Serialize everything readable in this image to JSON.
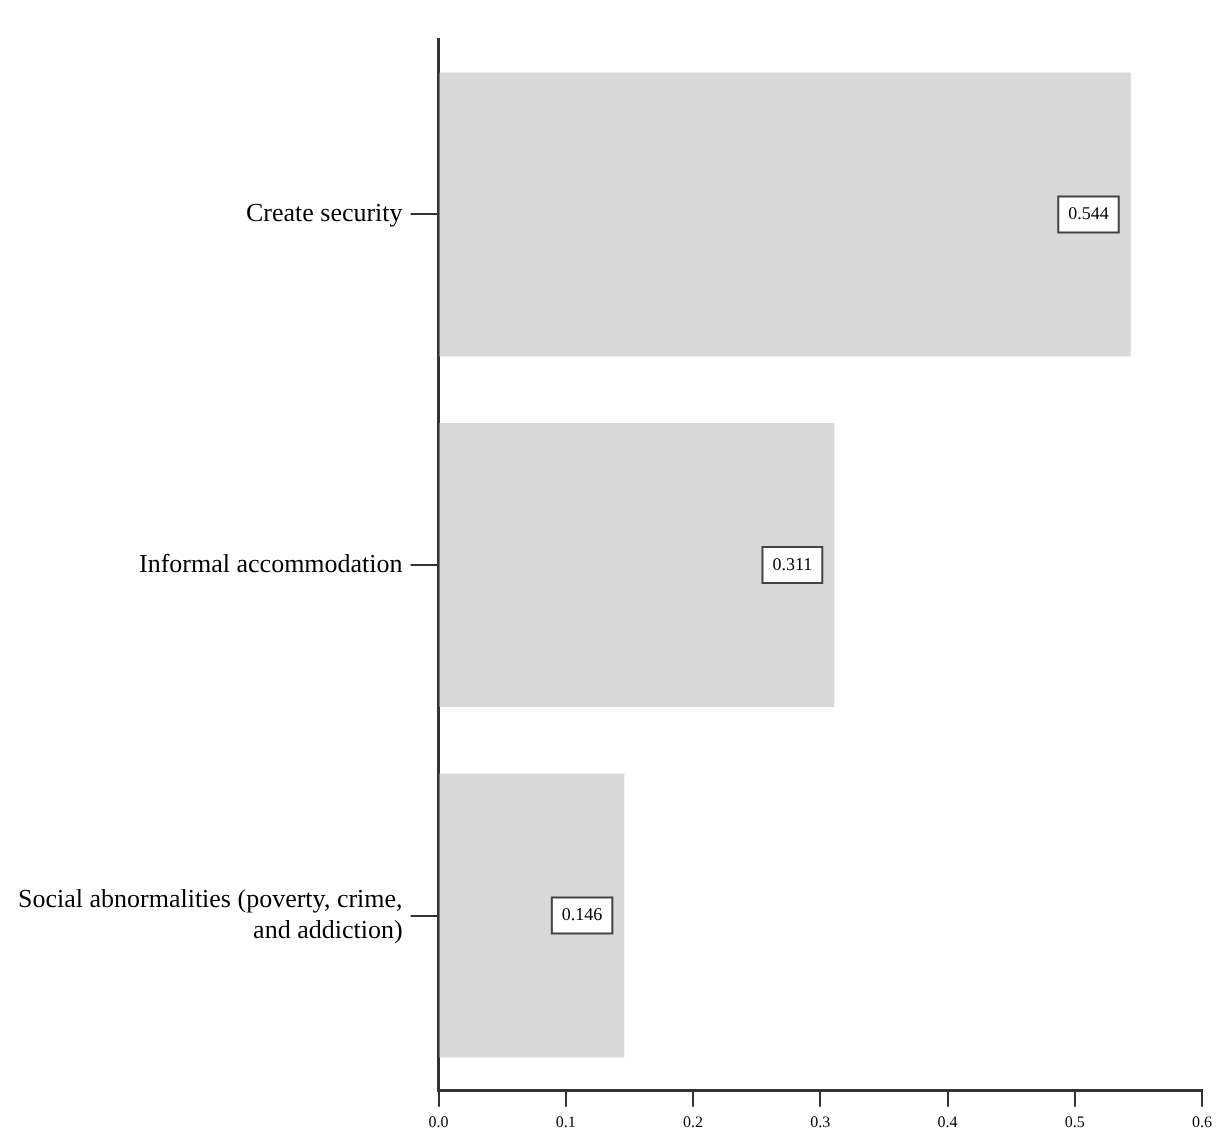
{
  "chart_data": {
    "type": "bar",
    "orientation": "horizontal",
    "categories": [
      "Create security",
      "Informal accommodation",
      "Social abnormalities (poverty, crime, and addiction)"
    ],
    "values": [
      0.544,
      0.311,
      0.146
    ],
    "color": "#d9d9d9",
    "data_labels": true,
    "grid": false,
    "legend": false,
    "xlim": [
      0,
      0.6
    ],
    "xticks": [
      {
        "value": 0,
        "label": "0.0"
      },
      {
        "value": 0.1,
        "label": "0.1"
      },
      {
        "value": 0.2,
        "label": "0.2"
      },
      {
        "value": 0.3,
        "label": "0.3"
      },
      {
        "value": 0.4,
        "label": "0.4"
      },
      {
        "value": 0.5,
        "label": "0.5"
      },
      {
        "value": 0.6,
        "label": "0.6"
      }
    ]
  }
}
